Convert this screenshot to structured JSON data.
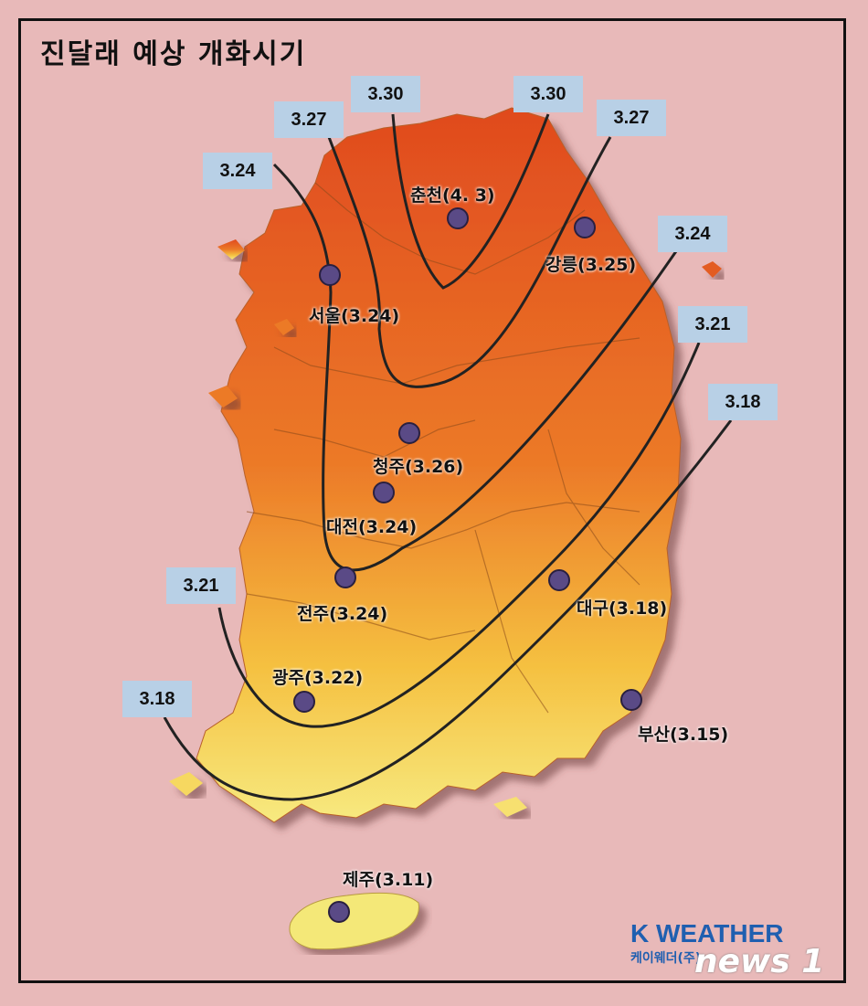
{
  "title": "진달래 예상 개화시기",
  "isolines": [
    {
      "label": "3.30"
    },
    {
      "label": "3.30"
    },
    {
      "label": "3.27"
    },
    {
      "label": "3.27"
    },
    {
      "label": "3.24"
    },
    {
      "label": "3.24"
    },
    {
      "label": "3.21"
    },
    {
      "label": "3.21"
    },
    {
      "label": "3.18"
    },
    {
      "label": "3.18"
    }
  ],
  "cities": [
    {
      "name": "춘천(4. 3)"
    },
    {
      "name": "강릉(3.25)"
    },
    {
      "name": "서울(3.24)"
    },
    {
      "name": "청주(3.26)"
    },
    {
      "name": "대전(3.24)"
    },
    {
      "name": "전주(3.24)"
    },
    {
      "name": "대구(3.18)"
    },
    {
      "name": "광주(3.22)"
    },
    {
      "name": "부산(3.15)"
    },
    {
      "name": "제주(3.11)"
    }
  ],
  "colors": {
    "map_north": "#e04a1e",
    "map_south": "#f7e06a",
    "marker": "#5a4a86",
    "label_bg": "#b8d0e6"
  },
  "logo": {
    "main": "K WEATHER",
    "sub": "케이웨더(주)"
  },
  "watermark": "news 1"
}
